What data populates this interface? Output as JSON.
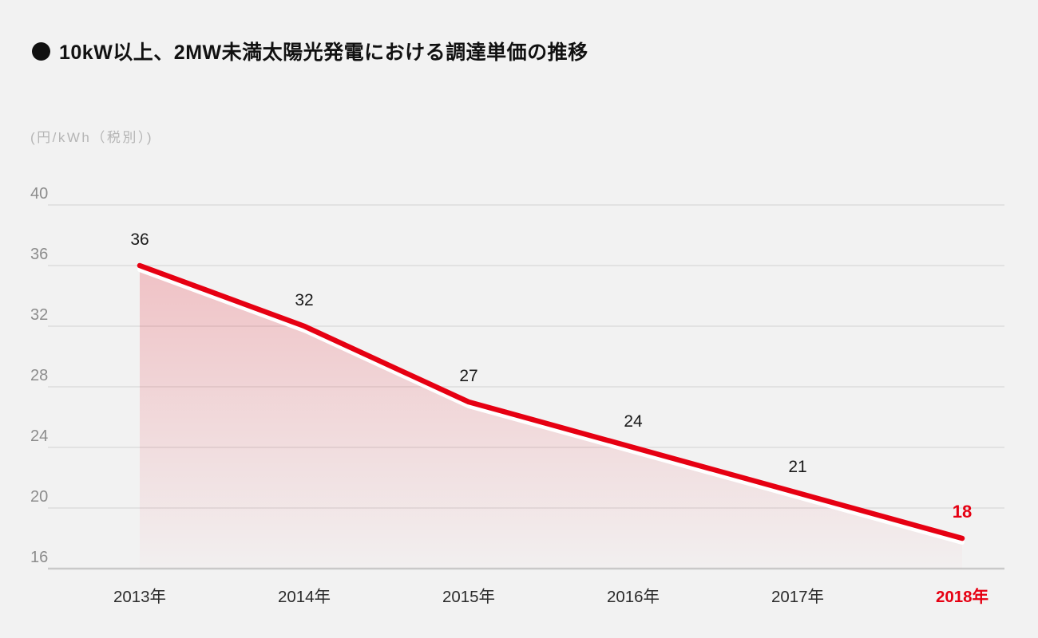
{
  "page": {
    "background": "#f2f2f2",
    "title": "10kW以上、2MW未満太陽光発電における調達単価の推移",
    "title_bullet_icon": "black-circle-icon"
  },
  "chart_data": {
    "type": "line",
    "title": "10kW以上、2MW未満太陽光発電における調達単価の推移",
    "unit_label": "(円/kWh（税別）)",
    "categories": [
      "2013年",
      "2014年",
      "2015年",
      "2016年",
      "2017年",
      "2018年"
    ],
    "values": [
      36,
      32,
      27,
      24,
      21,
      18
    ],
    "data_labels": [
      "36",
      "32",
      "27",
      "24",
      "21",
      "18"
    ],
    "yticks": [
      40,
      36,
      32,
      28,
      24,
      20,
      16
    ],
    "ylim": [
      16,
      41
    ],
    "grid": true,
    "legend": "none",
    "highlight_index": 5,
    "colors": {
      "line": "#e60012",
      "line_underlay": "#ffffff",
      "area_top": "rgba(230, 0, 18, 0.20)",
      "area_bottom": "rgba(230, 0, 18, 0.01)",
      "grid": "#dcdcdc",
      "baseline": "#c9c9c9",
      "tick_label": "#8c8c8c",
      "unit_label": "#b5b5b5",
      "x_label": "#2b2b2b",
      "data_label": "#1a1a1a",
      "highlight": "#e60012",
      "background": "#f2f2f2"
    }
  }
}
